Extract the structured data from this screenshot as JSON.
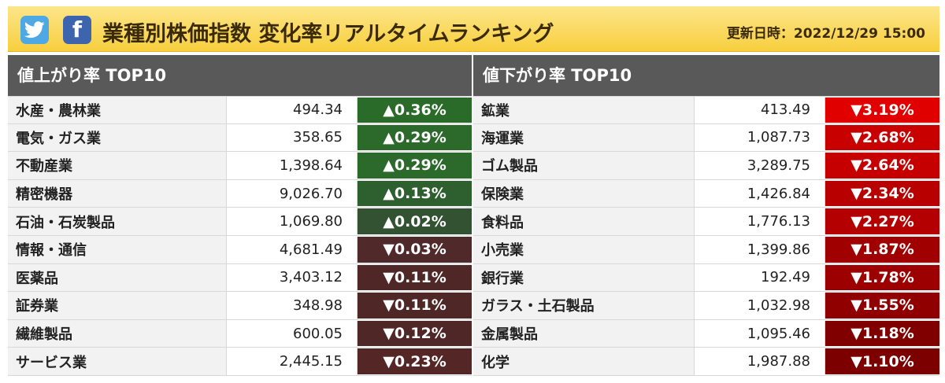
{
  "header": {
    "title": "業種別株価指数 変化率リアルタイムランキング",
    "updated": "更新日時：2022/12/29 15:00",
    "twitter_icon": "twitter-icon",
    "facebook_icon": "facebook-icon",
    "facebook_glyph": "f",
    "twitter_color": "#4ea8e3",
    "facebook_color": "#3c65ad"
  },
  "gainers": {
    "heading": "値上がり率 TOP10",
    "rows": [
      {
        "name": "水産・農林業",
        "value": "494.34",
        "change": "▲0.36%",
        "color": "#2a6b2a"
      },
      {
        "name": "電気・ガス業",
        "value": "358.65",
        "change": "▲0.29%",
        "color": "#2b6a2b"
      },
      {
        "name": "不動産業",
        "value": "1,398.64",
        "change": "▲0.29%",
        "color": "#2b6a2b"
      },
      {
        "name": "精密機器",
        "value": "9,026.70",
        "change": "▲0.13%",
        "color": "#2e5f2e"
      },
      {
        "name": "石油・石炭製品",
        "value": "1,069.80",
        "change": "▲0.02%",
        "color": "#325232"
      },
      {
        "name": "情報・通信",
        "value": "4,681.49",
        "change": "▼0.03%",
        "color": "#502a2a"
      },
      {
        "name": "医薬品",
        "value": "3,403.12",
        "change": "▼0.11%",
        "color": "#4f2727"
      },
      {
        "name": "証券業",
        "value": "348.98",
        "change": "▼0.11%",
        "color": "#4f2727"
      },
      {
        "name": "繊維製品",
        "value": "600.05",
        "change": "▼0.12%",
        "color": "#4f2727"
      },
      {
        "name": "サービス業",
        "value": "2,445.15",
        "change": "▼0.23%",
        "color": "#552626"
      }
    ]
  },
  "losers": {
    "heading": "値下がり率 TOP10",
    "rows": [
      {
        "name": "鉱業",
        "value": "413.49",
        "change": "▼3.19%",
        "color": "#e00000"
      },
      {
        "name": "海運業",
        "value": "1,087.73",
        "change": "▼2.68%",
        "color": "#c80000"
      },
      {
        "name": "ゴム製品",
        "value": "3,289.75",
        "change": "▼2.64%",
        "color": "#c60000"
      },
      {
        "name": "保険業",
        "value": "1,426.84",
        "change": "▼2.34%",
        "color": "#b80000"
      },
      {
        "name": "食料品",
        "value": "1,776.13",
        "change": "▼2.27%",
        "color": "#b40000"
      },
      {
        "name": "小売業",
        "value": "1,399.86",
        "change": "▼1.87%",
        "color": "#a00000"
      },
      {
        "name": "銀行業",
        "value": "192.49",
        "change": "▼1.78%",
        "color": "#9c0000"
      },
      {
        "name": "ガラス・土石製品",
        "value": "1,032.98",
        "change": "▼1.55%",
        "color": "#900000"
      },
      {
        "name": "金属製品",
        "value": "1,095.46",
        "change": "▼1.18%",
        "color": "#800000"
      },
      {
        "name": "化学",
        "value": "1,987.88",
        "change": "▼1.10%",
        "color": "#7c0000"
      }
    ]
  }
}
